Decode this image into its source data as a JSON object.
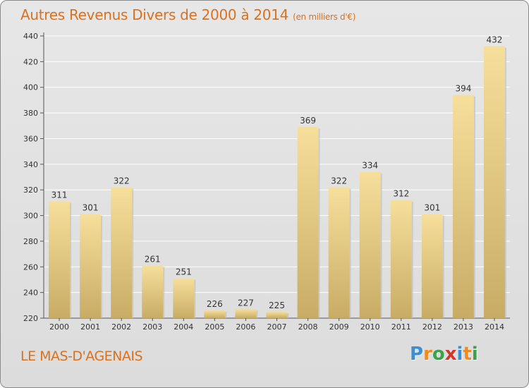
{
  "title": "Autres Revenus Divers de 2000 à 2014",
  "unit": "(en milliers d'€)",
  "place": "LE MAS-D'AGENAIS",
  "logo": {
    "letters": [
      "P",
      "r",
      "o",
      "x",
      "i",
      "t",
      "i"
    ],
    "colors": [
      "#3b8fd4",
      "#f08a1c",
      "#3aa34a",
      "#d6332b",
      "#3b8fd4",
      "#f08a1c",
      "#3aa34a"
    ]
  },
  "colors": {
    "title": "#d9711f",
    "bar_top": "#f6df9b",
    "bar_bottom": "#c8ac66",
    "grid": "#ffffff"
  },
  "chart_data": {
    "type": "bar",
    "title": "Autres Revenus Divers de 2000 à 2014",
    "ylabel": "(en milliers d'€)",
    "categories": [
      "2000",
      "2001",
      "2002",
      "2003",
      "2004",
      "2005",
      "2006",
      "2007",
      "2008",
      "2009",
      "2010",
      "2011",
      "2012",
      "2013",
      "2014"
    ],
    "values": [
      311,
      301,
      322,
      261,
      251,
      226,
      227,
      225,
      369,
      322,
      334,
      312,
      301,
      394,
      432
    ],
    "ylim": [
      220,
      440
    ],
    "yticks": [
      220,
      240,
      260,
      280,
      300,
      320,
      340,
      360,
      380,
      400,
      420,
      440
    ],
    "grid": true,
    "data_labels": true
  }
}
